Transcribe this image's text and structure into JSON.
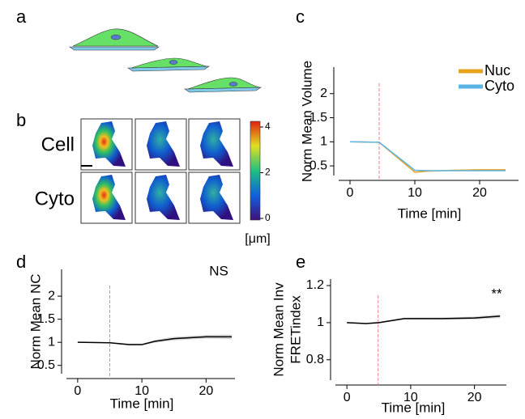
{
  "panels": {
    "labels": [
      "a",
      "b",
      "c",
      "d",
      "e"
    ]
  },
  "images": {
    "rows": [
      "Cell",
      "Cyto"
    ],
    "colorbar": {
      "ticks": [
        0,
        2,
        4
      ],
      "lim": [
        0,
        4
      ],
      "label": "[μm]"
    }
  },
  "chart_data": [
    {
      "type": "line",
      "xlabel": "Time [min]",
      "ylabel": [
        "Norm Mean Volume"
      ],
      "x": [
        0,
        4.5,
        10,
        12,
        16,
        20,
        24
      ],
      "series": [
        {
          "name": "Nuc",
          "color": "#e8a21b",
          "values": [
            1.0,
            0.99,
            0.37,
            0.39,
            0.41,
            0.42,
            0.42
          ]
        },
        {
          "name": "Cyto",
          "color": "#5ab4e5",
          "values": [
            1.0,
            0.99,
            0.41,
            0.4,
            0.4,
            0.4,
            0.4
          ]
        }
      ],
      "xlim": [
        -1.75,
        26
      ],
      "ylim": [
        0.3,
        2.55
      ],
      "xticks": [
        0,
        10,
        20
      ],
      "yticks": [
        0.5,
        1.0,
        1.5,
        2.0
      ],
      "vline": 4.5,
      "legend": "top-right"
    },
    {
      "type": "line",
      "xlabel": "Time [min]",
      "ylabel": [
        "Norm Mean NC"
      ],
      "annotation": "NS",
      "x": [
        0,
        5,
        8,
        10,
        12,
        15,
        20,
        24
      ],
      "series": [
        {
          "color": "#000000",
          "values": [
            1.0,
            0.99,
            0.95,
            0.95,
            1.02,
            1.08,
            1.12,
            1.12
          ],
          "errors": [
            0.01,
            0.01,
            0.02,
            0.02,
            0.03,
            0.04,
            0.04,
            0.05
          ]
        }
      ],
      "xlim": [
        -1.75,
        24.5
      ],
      "ylim": [
        0.32,
        2.58
      ],
      "xticks": [
        0,
        10,
        20
      ],
      "yticks": [
        0.5,
        1.0,
        1.5,
        2.0
      ],
      "vline": 5
    },
    {
      "type": "line",
      "xlabel": "Time [min]",
      "ylabel": [
        "Norm Mean Inv",
        "FRETindex"
      ],
      "annotation": "**",
      "x": [
        0,
        3,
        5,
        9,
        15,
        20,
        24
      ],
      "series": [
        {
          "color": "#000000",
          "values": [
            1.0,
            0.995,
            1.0,
            1.022,
            1.022,
            1.025,
            1.035
          ],
          "errors": [
            0.003,
            0.003,
            0.004,
            0.005,
            0.006,
            0.008,
            0.01
          ]
        }
      ],
      "xlim": [
        -1.8,
        25
      ],
      "ylim": [
        0.69,
        1.235
      ],
      "xticks": [
        0,
        10,
        20
      ],
      "yticks": [
        0.8,
        1.0,
        1.2
      ],
      "vline": 4.9
    }
  ]
}
